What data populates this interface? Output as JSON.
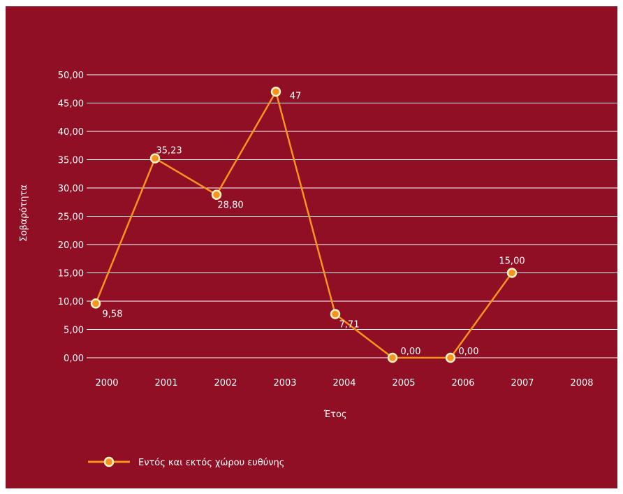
{
  "chart_data": {
    "type": "line",
    "x": [
      "2000",
      "2001",
      "2002",
      "2003",
      "2004",
      "2005",
      "2006",
      "2007",
      "2008"
    ],
    "series": [
      {
        "name": "Εντός και εκτός χώρου ευθύνης",
        "values": [
          9.58,
          35.23,
          28.8,
          47,
          7.71,
          0.0,
          0.0,
          15.0,
          null
        ],
        "labels": [
          "9,58",
          "35,23",
          "28,80",
          "47",
          "7,71",
          "0,00",
          "0,00",
          "15,00",
          ""
        ],
        "color": "#f7941d"
      }
    ],
    "y_ticks": [
      "0,00",
      "5,00",
      "10,00",
      "15,00",
      "20,00",
      "25,00",
      "30,00",
      "35,00",
      "40,00",
      "45,00",
      "50,00"
    ],
    "ylim": [
      0,
      50
    ],
    "xlabel": "Έτος",
    "ylabel": "Σοβαρότητα",
    "grid": true,
    "legend_position": "bottom-left",
    "background_color": "#900f24",
    "text_color": "#ffffff"
  }
}
